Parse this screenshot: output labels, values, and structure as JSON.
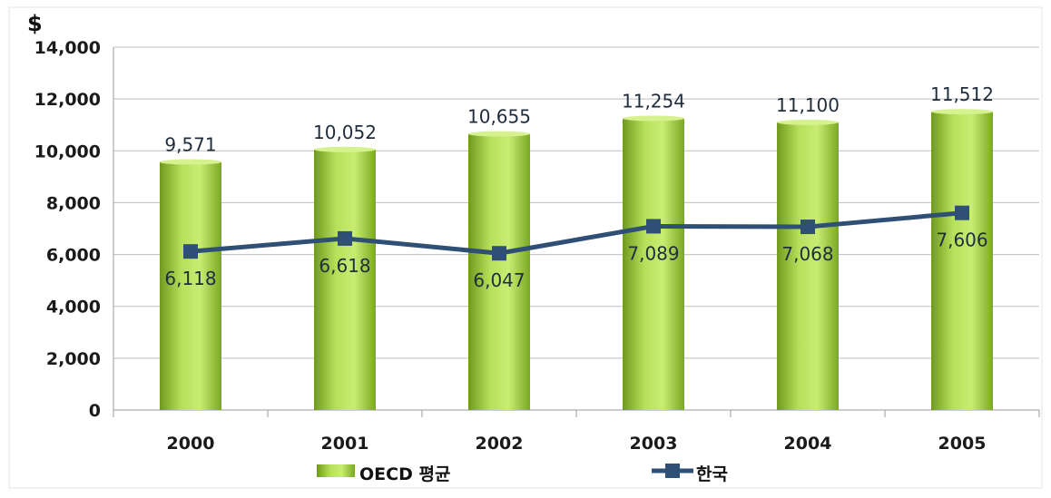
{
  "chart_data": {
    "type": "bar",
    "unit_label": "$",
    "categories": [
      "2000",
      "2001",
      "2002",
      "2003",
      "2004",
      "2005"
    ],
    "series": [
      {
        "name": "OECD 평균",
        "kind": "bar",
        "color": "#9ccd3a",
        "values": [
          9571,
          10052,
          10655,
          11254,
          11100,
          11512
        ],
        "labels": [
          "9,571",
          "10,052",
          "10,655",
          "11,254",
          "11,100",
          "11,512"
        ]
      },
      {
        "name": "한국",
        "kind": "line",
        "color": "#2f4f75",
        "values": [
          6118,
          6618,
          6047,
          7089,
          7068,
          7606
        ],
        "labels": [
          "6,118",
          "6,618",
          "6,047",
          "7,089",
          "7,068",
          "7,606"
        ]
      }
    ],
    "y_ticks": [
      "0",
      "2,000",
      "4,000",
      "6,000",
      "8,000",
      "10,000",
      "12,000",
      "14,000"
    ],
    "ylim": [
      0,
      14000
    ],
    "grid": true,
    "legend_position": "bottom"
  }
}
